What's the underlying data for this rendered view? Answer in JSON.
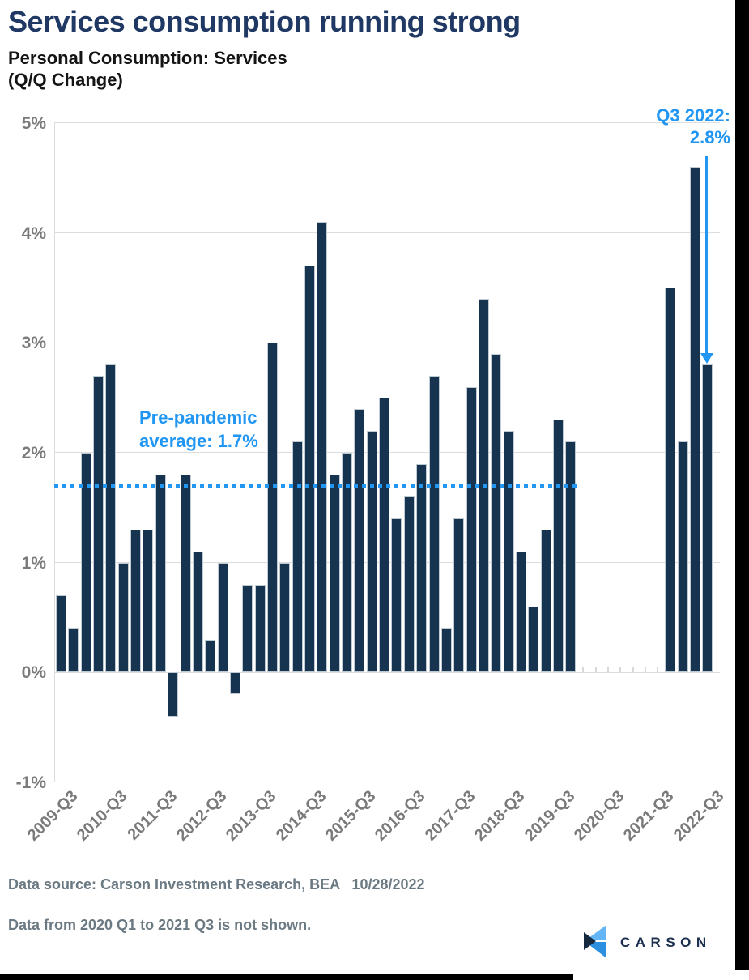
{
  "header": {
    "title": "Services consumption running strong",
    "subtitle_line1": "Personal Consumption: Services",
    "subtitle_line2": "(Q/Q Change)"
  },
  "chart_data": {
    "type": "bar",
    "title": "Personal Consumption: Services (Q/Q Change)",
    "xlabel": "",
    "ylabel": "Q/Q change",
    "ylim": [
      -1,
      5
    ],
    "grid": true,
    "bar_color": "#16344F",
    "accent_blue": "#2196F3",
    "ytick_labels": [
      "5%",
      "4%",
      "3%",
      "2%",
      "1%",
      "0%",
      "-1%"
    ],
    "ytick_values": [
      5,
      4,
      3,
      2,
      1,
      0,
      -1
    ],
    "categories": [
      "2009-Q3",
      "2009-Q4",
      "2010-Q1",
      "2010-Q2",
      "2010-Q3",
      "2010-Q4",
      "2011-Q1",
      "2011-Q2",
      "2011-Q3",
      "2011-Q4",
      "2012-Q1",
      "2012-Q2",
      "2012-Q3",
      "2012-Q4",
      "2013-Q1",
      "2013-Q2",
      "2013-Q3",
      "2013-Q4",
      "2014-Q1",
      "2014-Q2",
      "2014-Q3",
      "2014-Q4",
      "2015-Q1",
      "2015-Q2",
      "2015-Q3",
      "2015-Q4",
      "2016-Q1",
      "2016-Q2",
      "2016-Q3",
      "2016-Q4",
      "2017-Q1",
      "2017-Q2",
      "2017-Q3",
      "2017-Q4",
      "2018-Q1",
      "2018-Q2",
      "2018-Q3",
      "2018-Q4",
      "2019-Q1",
      "2019-Q2",
      "2019-Q3",
      "2019-Q4",
      "2020-Q1",
      "2020-Q2",
      "2020-Q3",
      "2020-Q4",
      "2021-Q1",
      "2021-Q2",
      "2021-Q3",
      "2021-Q4",
      "2022-Q1",
      "2022-Q2",
      "2022-Q3"
    ],
    "values": [
      0.7,
      0.4,
      2.0,
      2.7,
      2.8,
      1.0,
      1.3,
      1.3,
      1.8,
      -0.4,
      1.8,
      1.1,
      0.3,
      1.0,
      -0.2,
      0.8,
      0.8,
      3.0,
      1.0,
      2.1,
      3.7,
      4.1,
      1.8,
      2.0,
      2.4,
      2.2,
      2.5,
      1.4,
      1.6,
      1.9,
      2.7,
      0.4,
      1.4,
      2.6,
      3.4,
      2.9,
      2.2,
      1.1,
      0.6,
      1.3,
      2.3,
      2.1,
      null,
      null,
      null,
      null,
      null,
      null,
      null,
      3.5,
      2.1,
      4.6,
      2.8
    ],
    "xtick_labels": [
      "2009-Q3",
      "2010-Q3",
      "2011-Q3",
      "2012-Q3",
      "2013-Q3",
      "2014-Q3",
      "2015-Q3",
      "2016-Q3",
      "2017-Q3",
      "2018-Q3",
      "2019-Q3",
      "2020-Q3",
      "2021-Q3",
      "2022-Q3"
    ],
    "reference_line": {
      "value": 1.7,
      "style": "dotted",
      "color": "#2196F3",
      "label_line1": "Pre-pandemic",
      "label_line2": "average: 1.7%"
    },
    "annotation": {
      "label_line1": "Q3 2022:",
      "label_line2": "2.8%",
      "target_category": "2022-Q3",
      "target_value": 2.8,
      "color": "#2196F3"
    },
    "hidden_quarters": [
      "2020-Q1",
      "2020-Q2",
      "2020-Q3",
      "2020-Q4",
      "2021-Q1",
      "2021-Q2",
      "2021-Q3"
    ]
  },
  "footer": {
    "source_line": "Data source: Carson Investment Research, BEA   10/28/2022",
    "note_line": "Data from 2020 Q1 to 2021 Q3 is not shown."
  },
  "logo": {
    "text": "CARSON",
    "colors": {
      "light_blue": "#64B5F6",
      "mid_blue": "#2D8FE0",
      "navy": "#16293F"
    }
  }
}
